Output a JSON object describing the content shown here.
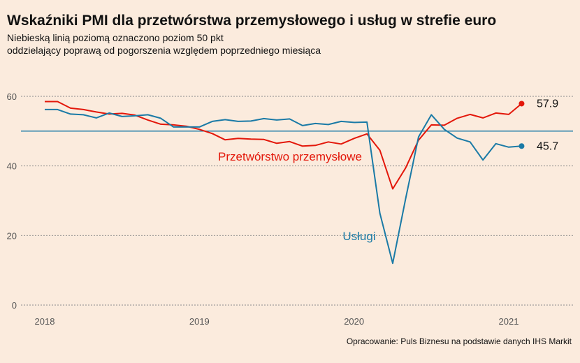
{
  "header": {
    "title": "Wskaźniki PMI dla przetwórstwa przemysłowego i usług w strefie euro",
    "subtitle_line1": "Niebieską linią poziomą oznaczono poziom 50 pkt",
    "subtitle_line2": "oddzielający poprawą od pogorszenia względem poprzedniego miesiąca"
  },
  "caption": "Opracowanie: Puls Biznesu na podstawie danych IHS Markit",
  "chart_data": {
    "type": "line",
    "x_unit": "month",
    "x": [
      "2018-01",
      "2018-02",
      "2018-03",
      "2018-04",
      "2018-05",
      "2018-06",
      "2018-07",
      "2018-08",
      "2018-09",
      "2018-10",
      "2018-11",
      "2018-12",
      "2019-01",
      "2019-02",
      "2019-03",
      "2019-04",
      "2019-05",
      "2019-06",
      "2019-07",
      "2019-08",
      "2019-09",
      "2019-10",
      "2019-11",
      "2019-12",
      "2020-01",
      "2020-02",
      "2020-03",
      "2020-04",
      "2020-05",
      "2020-06",
      "2020-07",
      "2020-08",
      "2020-09",
      "2020-10",
      "2020-11",
      "2020-12",
      "2021-01",
      "2021-02"
    ],
    "series": [
      {
        "name": "Przetwórstwo przemysłowe",
        "color": "#e3170a",
        "values": [
          58.5,
          58.5,
          56.6,
          56.2,
          55.5,
          54.9,
          55.1,
          54.6,
          53.2,
          52.0,
          51.8,
          51.4,
          50.5,
          49.3,
          47.5,
          47.9,
          47.7,
          47.6,
          46.5,
          47.0,
          45.7,
          45.9,
          46.9,
          46.3,
          47.9,
          49.2,
          44.5,
          33.4,
          39.4,
          47.4,
          51.8,
          51.7,
          53.7,
          54.8,
          53.8,
          55.2,
          54.8,
          57.9
        ],
        "end_label": "57.9",
        "label": "Przetwórstwo przemysłowe"
      },
      {
        "name": "Usługi",
        "color": "#1a7aa6",
        "values": [
          56.2,
          56.2,
          54.9,
          54.7,
          53.8,
          55.2,
          54.2,
          54.4,
          54.7,
          53.7,
          51.2,
          51.2,
          51.2,
          52.8,
          53.3,
          52.8,
          52.9,
          53.6,
          53.2,
          53.5,
          51.6,
          52.2,
          51.9,
          52.8,
          52.5,
          52.6,
          26.4,
          12.0,
          30.5,
          48.3,
          54.7,
          50.5,
          48.0,
          46.9,
          41.7,
          46.4,
          45.4,
          45.7
        ],
        "end_label": "45.7",
        "label": "Usługi"
      }
    ],
    "yticks": [
      0,
      20,
      40,
      60
    ],
    "xticks": [
      "2018",
      "2019",
      "2020",
      "2021"
    ],
    "ylim": [
      0,
      60
    ],
    "reference_line": 50,
    "reference_color": "#1a7aa6",
    "grid": true,
    "grid_style": "dotted horizontal"
  }
}
